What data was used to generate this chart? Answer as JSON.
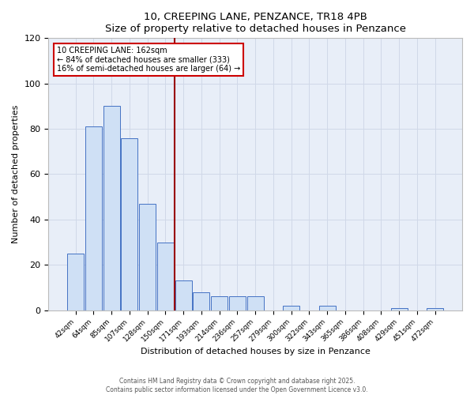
{
  "title": "10, CREEPING LANE, PENZANCE, TR18 4PB",
  "subtitle": "Size of property relative to detached houses in Penzance",
  "xlabel": "Distribution of detached houses by size in Penzance",
  "ylabel": "Number of detached properties",
  "bar_labels": [
    "42sqm",
    "64sqm",
    "85sqm",
    "107sqm",
    "128sqm",
    "150sqm",
    "171sqm",
    "193sqm",
    "214sqm",
    "236sqm",
    "257sqm",
    "279sqm",
    "300sqm",
    "322sqm",
    "343sqm",
    "365sqm",
    "386sqm",
    "408sqm",
    "429sqm",
    "451sqm",
    "472sqm"
  ],
  "bar_values": [
    25,
    81,
    90,
    76,
    47,
    30,
    13,
    8,
    6,
    6,
    6,
    0,
    2,
    0,
    2,
    0,
    0,
    0,
    1,
    0,
    1
  ],
  "bar_color": "#cfe0f5",
  "bar_edge_color": "#4472c4",
  "vline_x": 5.5,
  "vline_color": "#990000",
  "annotation_title": "10 CREEPING LANE: 162sqm",
  "annotation_line1": "← 84% of detached houses are smaller (333)",
  "annotation_line2": "16% of semi-detached houses are larger (64) →",
  "annotation_box_facecolor": "#ffffff",
  "annotation_box_edgecolor": "#cc0000",
  "ylim": [
    0,
    120
  ],
  "yticks": [
    0,
    20,
    40,
    60,
    80,
    100,
    120
  ],
  "footer1": "Contains HM Land Registry data © Crown copyright and database right 2025.",
  "footer2": "Contains public sector information licensed under the Open Government Licence v3.0.",
  "bg_color": "#ffffff",
  "plot_bg_color": "#e8eef8",
  "grid_color": "#d0d8e8",
  "spine_color": "#bbbbbb"
}
